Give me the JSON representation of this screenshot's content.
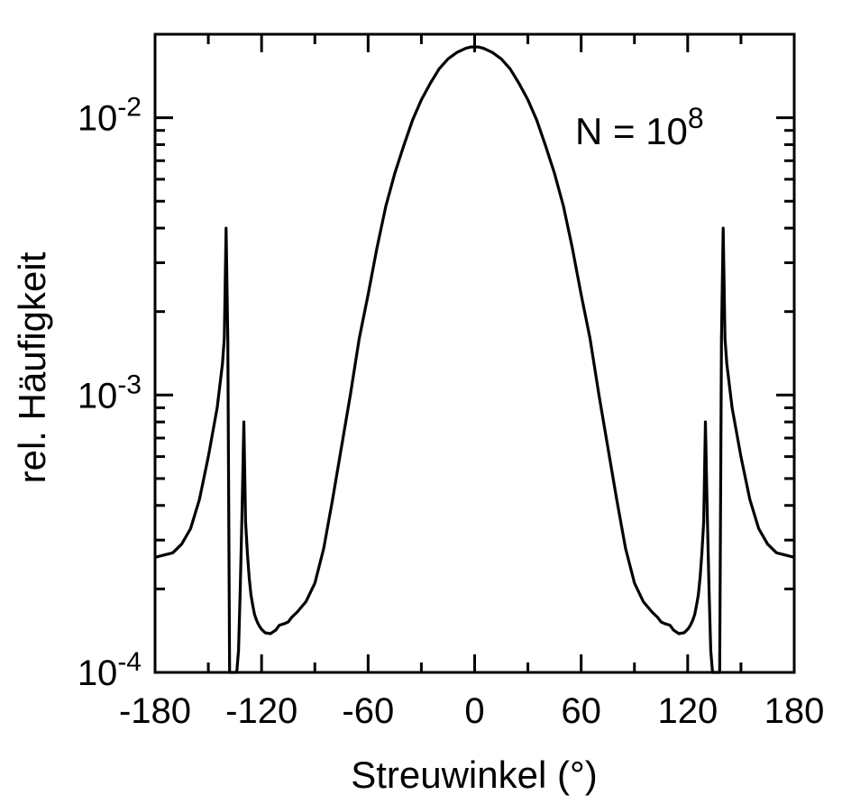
{
  "chart_data": {
    "type": "line",
    "xlabel": "Streuwinkel  (°)",
    "ylabel": "rel. Häufigkeit",
    "xlim": [
      -180,
      180
    ],
    "ylim": [
      0.0001,
      0.02
    ],
    "yscale": "log",
    "xticks": [
      -180,
      -120,
      -60,
      0,
      60,
      120,
      180
    ],
    "xtick_labels": [
      "-180",
      "-120",
      "-60",
      "0",
      "60",
      "120",
      "180"
    ],
    "ytick_labels": [
      {
        "value": 0.01,
        "base": "10",
        "exponent": "-2"
      },
      {
        "value": 0.001,
        "base": "10",
        "exponent": "-3"
      },
      {
        "value": 0.0001,
        "base": "10",
        "exponent": "-4"
      }
    ],
    "annotation": {
      "text": "N = 10",
      "exponent": "8"
    },
    "grid": false,
    "series": [
      {
        "x": [
          -180,
          -170,
          -165,
          -160,
          -155,
          -150,
          -145,
          -142,
          -141,
          -140,
          -139,
          -138,
          -137,
          -136,
          -135,
          -134,
          -133,
          -132,
          -131,
          -130,
          -129,
          -128,
          -127,
          -126,
          -125,
          -124,
          -123,
          -122,
          -121,
          -120,
          -118,
          -115,
          -112,
          -110,
          -107,
          -105,
          -103,
          -100,
          -95,
          -90,
          -85,
          -80,
          -75,
          -70,
          -65,
          -60,
          -55,
          -50,
          -45,
          -40,
          -35,
          -30,
          -25,
          -20,
          -15,
          -10,
          -5,
          -2,
          0,
          2,
          5,
          10,
          15,
          20,
          25,
          30,
          35,
          40,
          45,
          50,
          55,
          60,
          65,
          70,
          75,
          80,
          85,
          90,
          95,
          100,
          103,
          105,
          107,
          110,
          112,
          115,
          118,
          120,
          121,
          122,
          123,
          124,
          125,
          126,
          127,
          128,
          129,
          130,
          131,
          132,
          133,
          134,
          135,
          136,
          137,
          138,
          139,
          140,
          141,
          142,
          145,
          150,
          155,
          160,
          165,
          170,
          175,
          180
        ],
        "y": [
          0.00026,
          0.00027,
          0.00029,
          0.00033,
          0.00042,
          0.0006,
          0.0009,
          0.0013,
          0.0016,
          0.004,
          0.0016,
          0.0001,
          0.0001,
          0.0001,
          0.0001,
          0.0001,
          0.00012,
          0.0002,
          0.00038,
          0.0008,
          0.00035,
          0.00027,
          0.00022,
          0.00019,
          0.000175,
          0.000162,
          0.000155,
          0.00015,
          0.000146,
          0.000143,
          0.000139,
          0.000138,
          0.000142,
          0.000148,
          0.00015,
          0.000152,
          0.000158,
          0.000165,
          0.00018,
          0.00021,
          0.00028,
          0.00042,
          0.00065,
          0.001,
          0.0016,
          0.0023,
          0.0034,
          0.0048,
          0.0063,
          0.0079,
          0.0098,
          0.0116,
          0.0133,
          0.015,
          0.0163,
          0.0172,
          0.0178,
          0.018,
          0.018,
          0.018,
          0.0178,
          0.0172,
          0.0163,
          0.015,
          0.0133,
          0.0116,
          0.0098,
          0.0079,
          0.0063,
          0.0048,
          0.0034,
          0.0023,
          0.0016,
          0.001,
          0.00065,
          0.00042,
          0.00028,
          0.00021,
          0.00018,
          0.000165,
          0.000158,
          0.000152,
          0.00015,
          0.000148,
          0.000142,
          0.000138,
          0.000139,
          0.000143,
          0.000146,
          0.00015,
          0.000155,
          0.000162,
          0.000175,
          0.00019,
          0.00022,
          0.00027,
          0.00035,
          0.0008,
          0.00038,
          0.0002,
          0.00012,
          0.0001,
          0.0001,
          0.0001,
          0.0001,
          0.0001,
          0.0016,
          0.004,
          0.0016,
          0.0013,
          0.0009,
          0.0006,
          0.00042,
          0.00033,
          0.00029,
          0.00027,
          0.000265,
          0.00026
        ]
      }
    ]
  }
}
